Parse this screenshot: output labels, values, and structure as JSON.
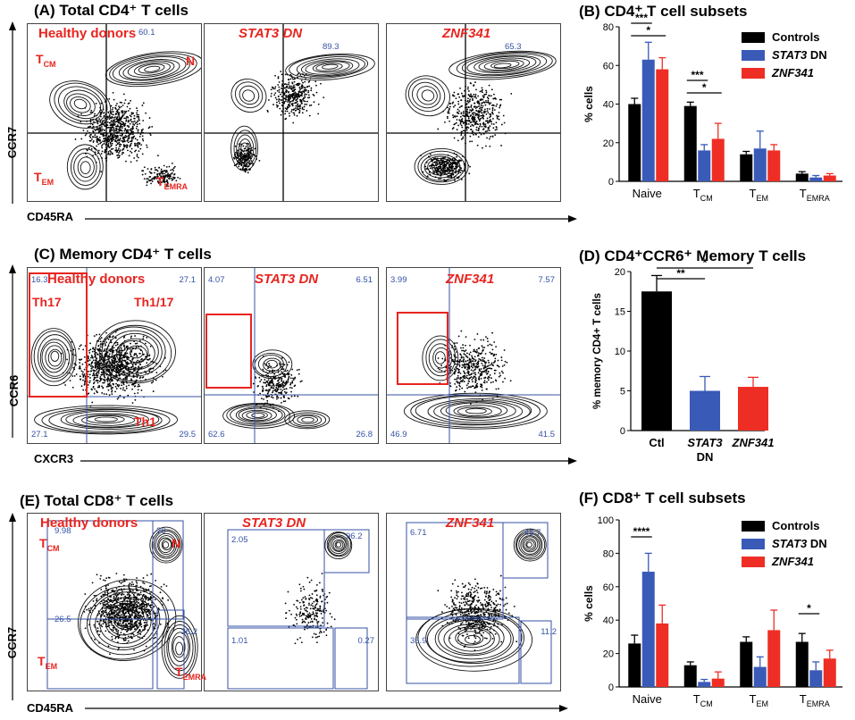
{
  "panelA": {
    "title": "(A) Total CD4⁺ T cells",
    "plots": [
      {
        "name": "Healthy donors",
        "quads": {
          "tl": "",
          "tr": "60.1",
          "bl": "",
          "br": ""
        }
      },
      {
        "name": "STAT3 DN",
        "quads": {
          "tl": "",
          "tr": "89.3",
          "bl": "",
          "br": ""
        }
      },
      {
        "name": "ZNF341",
        "quads": {
          "tl": "",
          "tr": "65.3",
          "bl": "",
          "br": ""
        }
      }
    ],
    "regions": {
      "tcm": "T",
      "tcm_sub": "CM",
      "n": "N",
      "tem": "T",
      "tem_sub": "EM",
      "temra": "T",
      "temra_sub": "EMRA"
    },
    "ylabel": "CCR7",
    "xlabel": "CD45RA"
  },
  "panelC": {
    "title": "(C) Memory CD4⁺ T cells",
    "plots": [
      {
        "name": "Healthy donors",
        "quads": {
          "tl": "16.3",
          "tr": "27.1",
          "bl": "27.1",
          "br": "29.5"
        }
      },
      {
        "name": "STAT3 DN",
        "quads": {
          "tl": "4.07",
          "tr": "6.51",
          "bl": "62.6",
          "br": "26.8"
        }
      },
      {
        "name": "ZNF341",
        "quads": {
          "tl": "3.99",
          "tr": "7.57",
          "bl": "46.9",
          "br": "41.5"
        }
      }
    ],
    "regions": {
      "th17": "Th17",
      "th117": "Th1/17",
      "th1": "Th1"
    },
    "ylabel": "CCR6",
    "xlabel": "CXCR3"
  },
  "panelE": {
    "title": "(E) Total CD8⁺ T cells",
    "plots": [
      {
        "name": "Healthy donors",
        "quads": {
          "tl": "9.98",
          "tr": "26",
          "bl": "26.5",
          "br": "36.2"
        }
      },
      {
        "name": "STAT3 DN",
        "quads": {
          "tl": "2.05",
          "tr": "96.2",
          "bl": "1.01",
          "br": "0.27"
        }
      },
      {
        "name": "ZNF341",
        "quads": {
          "tl": "6.71",
          "tr": "45.7",
          "bl": "35.9",
          "br": "11.2"
        }
      }
    ],
    "regions": {
      "tcm": "T",
      "tcm_sub": "CM",
      "n": "N",
      "tem": "T",
      "tem_sub": "EM",
      "temra": "T",
      "temra_sub": "EMRA"
    },
    "ylabel": "CCR7",
    "xlabel": "CD45RA"
  },
  "chart_data": [
    {
      "id": "B",
      "type": "bar",
      "title": "(B) CD4⁺ T cell subsets",
      "ylabel": "% cells",
      "ylim": [
        0,
        80
      ],
      "yticks": [
        0,
        20,
        40,
        60,
        80
      ],
      "categories": [
        "Naive",
        "T_CM",
        "T_EM",
        "T_EMRA"
      ],
      "series": [
        {
          "name": "Controls",
          "color": "#000000",
          "values": [
            40,
            39,
            14,
            4
          ],
          "errors": [
            3,
            2,
            1.5,
            1
          ]
        },
        {
          "name": "STAT3 DN",
          "color": "#3a5ab8",
          "values": [
            63,
            16,
            17,
            2
          ],
          "errors": [
            9,
            3,
            9,
            1
          ]
        },
        {
          "name": "ZNF341",
          "color": "#ee2e24",
          "values": [
            58,
            22,
            16,
            3
          ],
          "errors": [
            6,
            8,
            3,
            1
          ]
        }
      ],
      "significance": [
        {
          "label": "***",
          "group": 0,
          "from": 0,
          "to": 1
        },
        {
          "label": "*",
          "group": 0,
          "from": 0,
          "to": 2
        },
        {
          "label": "***",
          "group": 1,
          "from": 0,
          "to": 1
        },
        {
          "label": "*",
          "group": 1,
          "from": 0,
          "to": 2
        }
      ]
    },
    {
      "id": "D",
      "type": "bar",
      "title": "(D) CD4⁺CCR6⁺ Memory  T cells",
      "ylabel": "% memory CD4+ T cells",
      "ylim": [
        0,
        20
      ],
      "yticks": [
        0,
        5,
        10,
        15,
        20
      ],
      "categories": [
        "Ctl",
        "STAT3 DN",
        "ZNF341"
      ],
      "series": [
        {
          "name": "",
          "colors": [
            "#000000",
            "#3a5ab8",
            "#ee2e24"
          ],
          "values": [
            17.5,
            5,
            5.5
          ],
          "errors": [
            2,
            1.8,
            1.2
          ]
        }
      ],
      "significance": [
        {
          "label": "**",
          "from": 0,
          "to": 1
        },
        {
          "label": "*",
          "from": 0,
          "to": 2
        }
      ]
    },
    {
      "id": "F",
      "type": "bar",
      "title": "(F) CD8⁺ T cell subsets",
      "ylabel": "% cells",
      "ylim": [
        0,
        100
      ],
      "yticks": [
        0,
        20,
        40,
        60,
        80,
        100
      ],
      "categories": [
        "Naive",
        "T_CM",
        "T_EM",
        "T_EMRA"
      ],
      "series": [
        {
          "name": "Controls",
          "color": "#000000",
          "values": [
            26,
            13,
            27,
            27
          ],
          "errors": [
            5,
            2,
            3,
            5
          ]
        },
        {
          "name": "STAT3 DN",
          "color": "#3a5ab8",
          "values": [
            69,
            3,
            12,
            10
          ],
          "errors": [
            11,
            1.5,
            6,
            5
          ]
        },
        {
          "name": "ZNF341",
          "color": "#ee2e24",
          "values": [
            38,
            5,
            34,
            17
          ],
          "errors": [
            11,
            4,
            12,
            5
          ]
        }
      ],
      "significance": [
        {
          "label": "****",
          "group": 0,
          "from": 0,
          "to": 1
        },
        {
          "label": "*",
          "group": 3,
          "from": 0,
          "to": 1
        }
      ]
    }
  ]
}
